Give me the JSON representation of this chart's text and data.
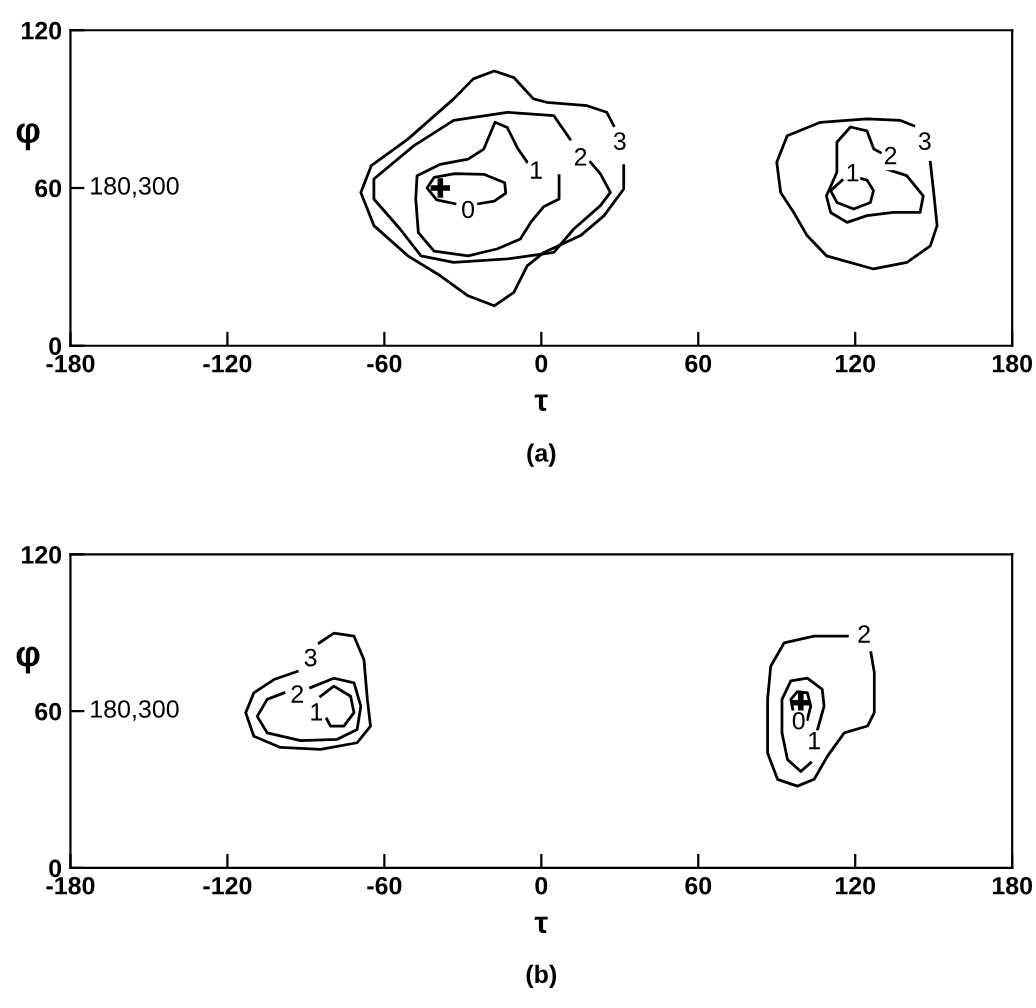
{
  "chart_data": [
    {
      "type": "line",
      "title": "(a)",
      "xlabel": "τ",
      "ylabel": "φ",
      "xlim": [
        -180,
        180
      ],
      "ylim": [
        0,
        120
      ],
      "xticks": [
        -180,
        -120,
        -60,
        0,
        60,
        120,
        180
      ],
      "yticks": [
        0,
        60,
        120
      ],
      "series": [
        {
          "color": "#000000",
          "x": [
            -33,
            -40,
            -43.7,
            -41,
            -33,
            -22,
            -14,
            -13.6,
            -18,
            -24
          ],
          "values": [
            54,
            55.5,
            60,
            64,
            65.5,
            65.2,
            62,
            58,
            55,
            54
          ]
        },
        {
          "color": "#000000",
          "x": [
            6.8,
            6.8,
            1,
            -4,
            -8,
            -17,
            -28,
            -41,
            -47,
            -48,
            -47.5,
            -38.6,
            -28,
            -22,
            -17.7,
            -13,
            -9,
            -5.5
          ],
          "values": [
            64.7,
            55.8,
            53,
            47,
            40.6,
            36.8,
            34.2,
            36,
            43,
            55.8,
            64.7,
            69,
            71,
            74.8,
            85,
            83,
            75,
            70
          ]
        },
        {
          "color": "#000000",
          "x": [
            11,
            4.8,
            -13,
            -33.5,
            -48.8,
            -64,
            -64,
            -54,
            -46,
            -33.5,
            -13,
            4.8,
            12.4,
            22.6,
            26.4,
            22.6,
            18.8
          ],
          "values": [
            78.6,
            87.5,
            88.8,
            85.7,
            76,
            63.4,
            55.8,
            44.4,
            34.2,
            31.7,
            33,
            35.5,
            44.4,
            53.3,
            58.3,
            65.4,
            69.8
          ]
        },
        {
          "color": "#000000",
          "x": [
            31.5,
            31.5,
            24,
            15,
            1,
            -5.4,
            -10.5,
            -18,
            -28,
            -38.6,
            -51,
            -64,
            -69,
            -65,
            -51,
            -33.5,
            -26,
            -18,
            -10.5,
            -3,
            2,
            17.5,
            25,
            27.7
          ],
          "values": [
            68.5,
            59.6,
            49.5,
            41.9,
            35.5,
            30.4,
            20.3,
            15.2,
            19,
            26.6,
            34.2,
            45.7,
            58.3,
            68.5,
            78.6,
            93.9,
            101.5,
            104.5,
            102,
            93.9,
            92.6,
            91.3,
            88.8,
            83.7
          ]
        },
        {
          "color": "#000000",
          "x": [
            115,
            110.6,
            113,
            119.4,
            125.8,
            127,
            124.5,
            120.7
          ],
          "values": [
            63,
            59,
            54.5,
            52,
            54.5,
            59,
            63,
            64
          ]
        },
        {
          "color": "#000000",
          "x": [
            132,
            139.7,
            146,
            144.8,
            134.6,
            124.5,
            116.9,
            110.6,
            109,
            113,
            113,
            118.2,
            124.5,
            127.1,
            129.6
          ],
          "values": [
            67.2,
            64.7,
            57,
            50.7,
            50.7,
            49.5,
            46.9,
            50.7,
            57,
            66,
            77.4,
            83.2,
            81.7,
            74.8,
            73.5
          ]
        },
        {
          "color": "#000000",
          "x": [
            148.7,
            150,
            151.3,
            148.7,
            139.8,
            127,
            109,
            101.6,
            96.5,
            91.5,
            90,
            94,
            106.7,
            124.5,
            137.3,
            142.4
          ],
          "values": [
            69.8,
            58.3,
            45.7,
            38,
            31.7,
            29.2,
            34.2,
            41.9,
            50.7,
            58.3,
            69.8,
            79.9,
            85,
            86.3,
            85.7,
            83.7
          ]
        },
        {
          "type": "scatter",
          "marker": "cross",
          "color": "#000000",
          "x": [
            -38.6
          ],
          "values": [
            60
          ]
        }
      ],
      "annotations": [
        "180,300",
        {
          "text": "0",
          "x": -28,
          "y": 51
        },
        {
          "text": "1",
          "x": -2,
          "y": 66
        },
        {
          "text": "2",
          "x": 15,
          "y": 71
        },
        {
          "text": "3",
          "x": 30,
          "y": 77
        },
        {
          "text": "1",
          "x": 119,
          "y": 65
        },
        {
          "text": "2",
          "x": 133.5,
          "y": 71.5
        },
        {
          "text": "3",
          "x": 146.6,
          "y": 77
        }
      ]
    },
    {
      "type": "line",
      "title": "(b)",
      "xlabel": "τ",
      "ylabel": "φ",
      "xlim": [
        -180,
        180
      ],
      "ylim": [
        0,
        120
      ],
      "xticks": [
        -180,
        -120,
        -60,
        0,
        60,
        120,
        180
      ],
      "yticks": [
        0,
        60,
        120
      ],
      "series": [
        {
          "color": "#000000",
          "x": [
            -84.4,
            -79.3,
            -72.9,
            -71.6,
            -75.5,
            -80.6,
            -82
          ],
          "values": [
            65.7,
            69.6,
            65.7,
            59.4,
            54.3,
            54.3,
            57
          ]
        },
        {
          "color": "#000000",
          "x": [
            -88.2,
            -79.3,
            -71.6,
            -69,
            -70.4,
            -78,
            -92,
            -104.8,
            -108.6,
            -104.8,
            -98.4
          ],
          "values": [
            69,
            72.6,
            70.8,
            61.9,
            53,
            49.2,
            48.7,
            51.7,
            58,
            64.5,
            67
          ]
        },
        {
          "color": "#000000",
          "x": [
            -84.9,
            -79.3,
            -71.6,
            -67.8,
            -66.5,
            -65.3,
            -70.4,
            -84.4,
            -99.7,
            -109.9,
            -113,
            -109.9,
            -102.2,
            -93.3
          ],
          "values": [
            86.1,
            89.9,
            88.7,
            79.7,
            64.5,
            54.3,
            47.9,
            45.4,
            46.1,
            50.4,
            59.4,
            67,
            72.1,
            75.2
          ]
        },
        {
          "color": "#000000",
          "x": [
            96.6,
            95.4,
            97.9,
            101.7,
            103,
            101.7
          ],
          "values": [
            58.1,
            64.5,
            67.5,
            67,
            61.9,
            56.8
          ]
        },
        {
          "color": "#000000",
          "x": [
            105.6,
            108.1,
            107.4,
            101.7,
            95.4,
            92,
            92,
            94.1,
            99.2,
            103
          ],
          "values": [
            53,
            61.9,
            68.3,
            72.6,
            71.6,
            64.5,
            51.7,
            41.5,
            36.9,
            40.3
          ]
        },
        {
          "color": "#000000",
          "x": [
            117,
            104.3,
            92.8,
            87.7,
            86.5,
            86.5,
            90.3,
            97.9,
            104.3,
            109.4,
            115.8,
            124.7,
            127.3,
            127.3,
            126
          ],
          "values": [
            88.7,
            88.7,
            86.1,
            77.2,
            64.5,
            44,
            33.9,
            31.3,
            33.9,
            42.8,
            51.7,
            54.3,
            59.4,
            74.8,
            82.4
          ]
        },
        {
          "type": "scatter",
          "marker": "cross",
          "color": "#000000",
          "x": [
            99.2
          ],
          "values": [
            63.2
          ]
        }
      ],
      "annotations": [
        "180,300",
        {
          "text": "1",
          "x": -86,
          "y": 58.9
        },
        {
          "text": "2",
          "x": -93.3,
          "y": 65.7
        },
        {
          "text": "3",
          "x": -88.2,
          "y": 79.7
        },
        {
          "text": "0",
          "x": 98.4,
          "y": 55.5
        },
        {
          "text": "1",
          "x": 104.3,
          "y": 47.9
        },
        {
          "text": "2",
          "x": 123.4,
          "y": 88.7
        }
      ]
    }
  ]
}
